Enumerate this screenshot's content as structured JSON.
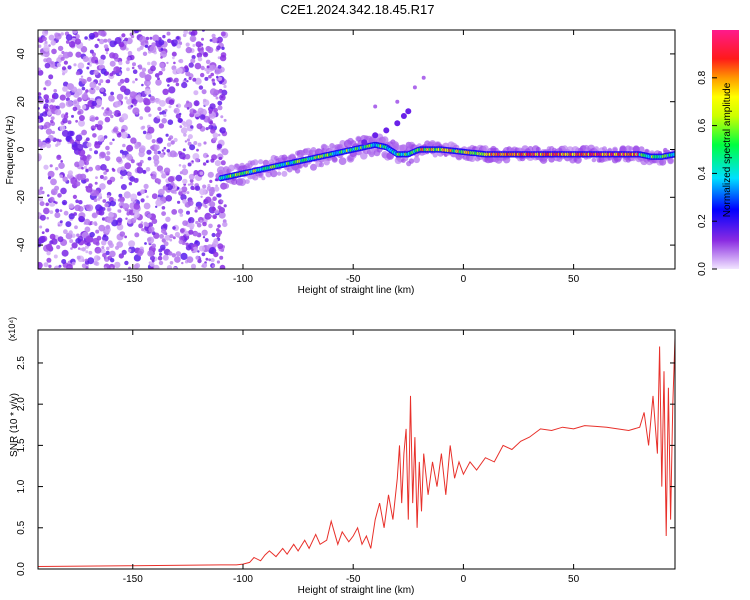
{
  "title": "C2E1.2024.342.18.45.R17",
  "chart_data": [
    {
      "type": "heatmap",
      "xlabel": "Height of straight line (km)",
      "ylabel": "Frequency (Hz)",
      "xlim": [
        -193,
        96
      ],
      "ylim": [
        -50,
        50
      ],
      "xticks": [
        "-150",
        "-100",
        "-50",
        "0",
        "50"
      ],
      "yticks": [
        "40",
        "20",
        "0",
        "-20",
        "-40"
      ],
      "colorbar": {
        "label": "Normalized spectral amplitude",
        "range": [
          0,
          1
        ],
        "ticks": [
          "0.0",
          "0.2",
          "0.4",
          "0.6",
          "0.8"
        ]
      },
      "ridge": {
        "x": [
          -110,
          -100,
          -90,
          -80,
          -70,
          -60,
          -50,
          -45,
          -40,
          -35,
          -30,
          -25,
          -20,
          -10,
          0,
          10,
          20,
          30,
          40,
          50,
          60,
          70,
          80,
          85,
          90,
          96
        ],
        "y": [
          -12,
          -10,
          -8,
          -6,
          -4,
          -2,
          0,
          1,
          2,
          1,
          -2,
          -2,
          0,
          0,
          -1,
          -2,
          -2,
          -2,
          -2,
          -2,
          -2,
          -2,
          -2,
          -3,
          -3,
          -2
        ]
      }
    },
    {
      "type": "line",
      "xlabel": "Height of straight line (km)",
      "ylabel": "SNR (10 * v/v)",
      "multiplier": "(x10⁴)",
      "xlim": [
        -193,
        96
      ],
      "ylim": [
        0,
        2.9
      ],
      "xticks": [
        "-150",
        "-100",
        "-50",
        "0",
        "50"
      ],
      "yticks": [
        "0.0",
        "0.5",
        "1.0",
        "1.5",
        "2.0",
        "2.5"
      ],
      "series": [
        {
          "color": "#e8302a",
          "x": [
            -193,
            -150,
            -110,
            -103,
            -100,
            -97,
            -95,
            -92,
            -90,
            -88,
            -85,
            -82,
            -80,
            -77,
            -75,
            -72,
            -70,
            -67,
            -65,
            -62,
            -60,
            -57,
            -55,
            -52,
            -50,
            -48,
            -46,
            -44,
            -42,
            -40,
            -38,
            -36,
            -34,
            -32,
            -30,
            -29,
            -28,
            -27,
            -26,
            -25,
            -24,
            -23,
            -22,
            -21,
            -20,
            -19,
            -18,
            -16,
            -14,
            -12,
            -10,
            -8,
            -6,
            -4,
            -2,
            0,
            3,
            6,
            10,
            14,
            18,
            22,
            26,
            30,
            35,
            40,
            45,
            50,
            55,
            60,
            65,
            70,
            75,
            80,
            82,
            84,
            86,
            88,
            89,
            90,
            91,
            92,
            93,
            94,
            95,
            96
          ],
          "y": [
            0.03,
            0.04,
            0.05,
            0.05,
            0.06,
            0.08,
            0.14,
            0.1,
            0.17,
            0.22,
            0.15,
            0.25,
            0.18,
            0.3,
            0.22,
            0.35,
            0.25,
            0.42,
            0.3,
            0.35,
            0.58,
            0.3,
            0.45,
            0.33,
            0.4,
            0.5,
            0.3,
            0.4,
            0.25,
            0.6,
            0.8,
            0.5,
            0.9,
            0.6,
            1.1,
            1.5,
            0.8,
            1.4,
            1.7,
            0.6,
            2.1,
            0.8,
            1.6,
            0.5,
            1.3,
            0.7,
            1.4,
            0.9,
            1.3,
            1.0,
            1.4,
            0.9,
            1.5,
            1.1,
            1.3,
            1.15,
            1.3,
            1.2,
            1.35,
            1.3,
            1.5,
            1.45,
            1.55,
            1.6,
            1.7,
            1.68,
            1.72,
            1.7,
            1.74,
            1.73,
            1.72,
            1.7,
            1.68,
            1.72,
            1.9,
            1.5,
            2.1,
            1.4,
            2.7,
            1.0,
            2.4,
            0.4,
            2.2,
            0.6,
            2.0,
            2.8
          ]
        }
      ]
    }
  ]
}
